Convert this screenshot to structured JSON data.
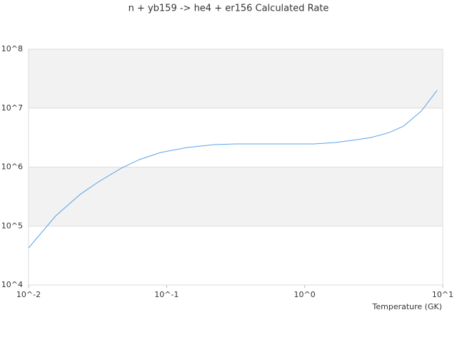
{
  "chart_data": {
    "type": "line",
    "title": "n + yb159 -> he4 + er156 Calculated Rate",
    "x_label": "Temperature (GK)",
    "x": [
      0.01,
      0.0157,
      0.0236,
      0.0322,
      0.0471,
      0.0635,
      0.0906,
      0.141,
      0.221,
      0.315,
      1.17,
      1.67,
      2.4,
      3.03,
      4.09,
      5.2,
      7.0,
      9.1
    ],
    "series": [
      {
        "color": "#5aa3e8",
        "values": [
          42500,
          148000,
          343000,
          565000,
          960000,
          1340000,
          1770000,
          2150000,
          2400000,
          2470000,
          2470000,
          2610000,
          2920000,
          3170000,
          3850000,
          4950000,
          8900000,
          20000000
        ]
      }
    ],
    "log_x": true,
    "log_y": true,
    "xlim": [
      0.01,
      10
    ],
    "ylim": [
      10000,
      100000000
    ],
    "xticks": [
      {
        "value": 0.01,
        "label": "10^-2"
      },
      {
        "value": 0.1,
        "label": "10^-1"
      },
      {
        "value": 1,
        "label": "10^0"
      },
      {
        "value": 10,
        "label": "10^1"
      }
    ],
    "yticks": [
      {
        "value": 10000,
        "label": "10^4"
      },
      {
        "value": 100000,
        "label": "10^5"
      },
      {
        "value": 1000000,
        "label": "10^6"
      },
      {
        "value": 10000000,
        "label": "10^7"
      },
      {
        "value": 100000000,
        "label": "10^8"
      }
    ],
    "grid": true
  }
}
